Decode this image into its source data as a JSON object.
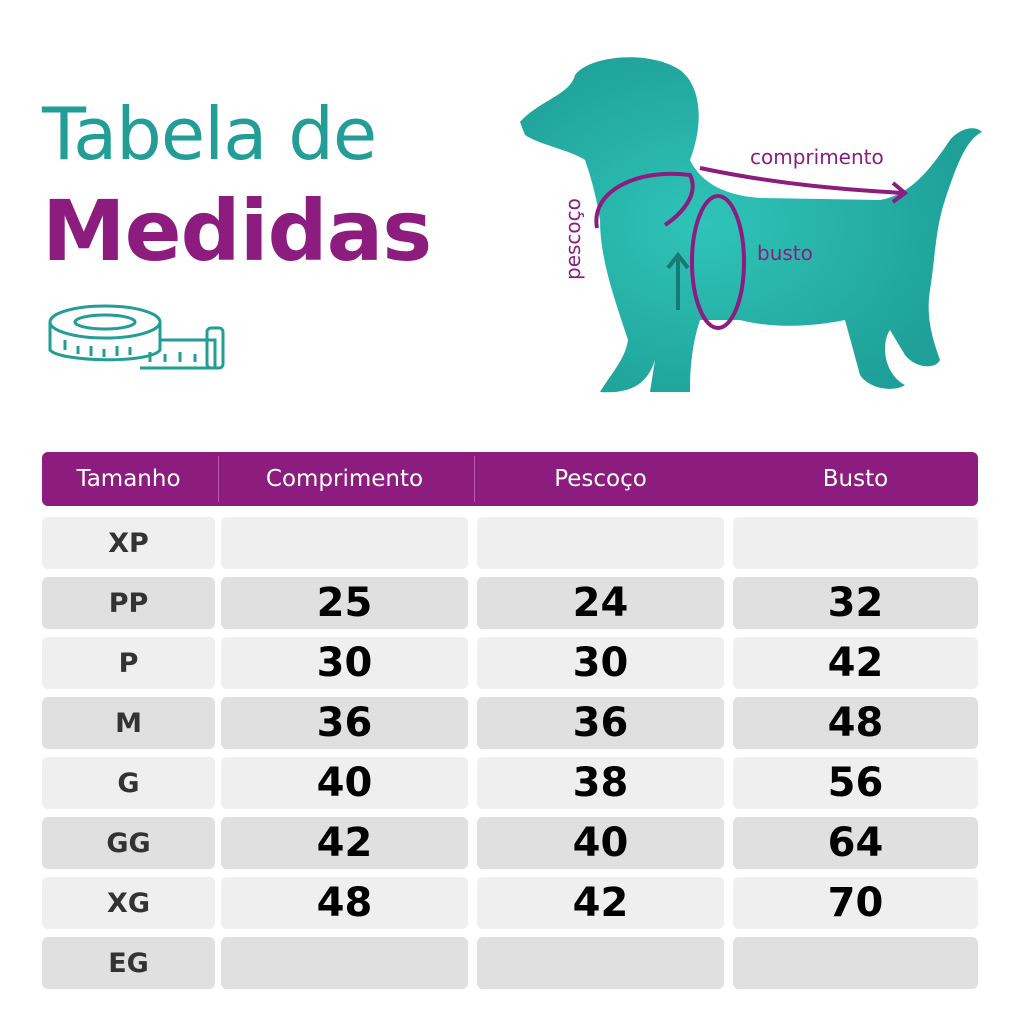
{
  "header": {
    "title_line1": "Tabela de",
    "title_line2": "Medidas"
  },
  "diagram": {
    "labels": {
      "length": "comprimento",
      "neck": "pescoço",
      "chest": "busto"
    }
  },
  "table": {
    "columns": [
      "Tamanho",
      "Comprimento",
      "Pescoço",
      "Busto"
    ],
    "rows": [
      {
        "size": "XP",
        "values": [
          null,
          null,
          null
        ]
      },
      {
        "size": "PP",
        "values": [
          25,
          24,
          32
        ]
      },
      {
        "size": "P",
        "values": [
          30,
          30,
          42
        ]
      },
      {
        "size": "M",
        "values": [
          36,
          36,
          48
        ]
      },
      {
        "size": "G",
        "values": [
          40,
          38,
          56
        ]
      },
      {
        "size": "GG",
        "values": [
          42,
          40,
          64
        ]
      },
      {
        "size": "XG",
        "values": [
          48,
          42,
          70
        ]
      },
      {
        "size": "EG",
        "values": [
          null,
          null,
          null
        ]
      }
    ]
  }
}
